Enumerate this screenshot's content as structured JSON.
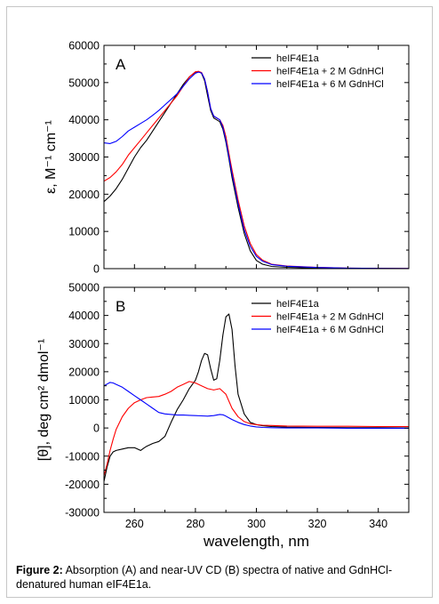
{
  "figure": {
    "caption_label": "Figure 2:",
    "caption_text": "Absorption (A) and near-UV CD (B) spectra of native and GdnHCl-denatured human eIF4E1a."
  },
  "chart_data": [
    {
      "type": "line",
      "panel_label": "A",
      "xlabel": "",
      "ylabel": "ε, M⁻¹ cm⁻¹",
      "xlim": [
        250,
        350
      ],
      "ylim": [
        0,
        60000
      ],
      "yticks": [
        0,
        10000,
        20000,
        30000,
        40000,
        50000,
        60000
      ],
      "xticks": [
        260,
        280,
        300,
        320,
        340
      ],
      "show_x_tick_labels": false,
      "grid": false,
      "legend_position": "top-right",
      "series": [
        {
          "name": "heIF4E1a",
          "color": "#000000",
          "x": [
            250,
            252,
            254,
            256,
            258,
            260,
            262,
            264,
            266,
            268,
            270,
            272,
            274,
            276,
            278,
            280,
            281,
            282,
            283,
            284,
            285,
            286,
            287,
            288,
            289,
            290,
            291,
            292,
            294,
            296,
            298,
            300,
            302,
            305,
            310,
            320,
            330,
            340,
            350
          ],
          "y": [
            18000,
            19500,
            21500,
            24000,
            27000,
            30000,
            32500,
            34500,
            37000,
            39500,
            42000,
            44500,
            47000,
            49500,
            51500,
            52800,
            53000,
            52500,
            50500,
            46500,
            42500,
            40500,
            40000,
            39500,
            37500,
            34000,
            29500,
            24500,
            16500,
            9500,
            4800,
            2200,
            1200,
            600,
            350,
            150,
            80,
            40,
            0
          ]
        },
        {
          "name": "heIF4E1a + 2 M GdnHCl",
          "color": "#ff0000",
          "x": [
            250,
            252,
            254,
            256,
            258,
            260,
            262,
            264,
            266,
            268,
            270,
            272,
            274,
            276,
            278,
            280,
            281,
            282,
            283,
            284,
            285,
            286,
            287,
            288,
            289,
            290,
            291,
            292,
            294,
            296,
            298,
            300,
            302,
            305,
            310,
            320,
            330,
            340,
            350
          ],
          "y": [
            23500,
            24500,
            26000,
            28000,
            30500,
            32500,
            34500,
            36500,
            38500,
            40500,
            42500,
            44500,
            46500,
            49000,
            51500,
            52900,
            53000,
            52700,
            51000,
            47500,
            43000,
            41000,
            40500,
            40000,
            38500,
            35500,
            31000,
            26500,
            18500,
            11500,
            6800,
            3800,
            2300,
            1200,
            700,
            350,
            150,
            80,
            50
          ]
        },
        {
          "name": "heIF4E1a + 6 M GdnHCl",
          "color": "#0000ff",
          "x": [
            250,
            252,
            254,
            256,
            258,
            260,
            262,
            264,
            266,
            268,
            270,
            272,
            274,
            276,
            278,
            280,
            281,
            282,
            283,
            284,
            285,
            286,
            287,
            288,
            289,
            290,
            291,
            292,
            294,
            296,
            298,
            300,
            302,
            305,
            310,
            320,
            330,
            340,
            350
          ],
          "y": [
            33800,
            33600,
            34200,
            35500,
            37000,
            38000,
            39000,
            40000,
            41200,
            42500,
            44000,
            45500,
            47000,
            49000,
            51000,
            52500,
            52800,
            52600,
            51000,
            47500,
            43000,
            41000,
            40500,
            40000,
            38000,
            34500,
            30000,
            25500,
            17500,
            10500,
            6000,
            3300,
            2000,
            1100,
            650,
            300,
            150,
            70,
            40
          ]
        }
      ]
    },
    {
      "type": "line",
      "panel_label": "B",
      "xlabel": "wavelength, nm",
      "ylabel": "[θ], deg cm² dmol⁻¹",
      "xlim": [
        250,
        350
      ],
      "ylim": [
        -30000,
        50000
      ],
      "yticks": [
        -30000,
        -20000,
        -10000,
        0,
        10000,
        20000,
        30000,
        40000,
        50000
      ],
      "xticks": [
        260,
        280,
        300,
        320,
        340
      ],
      "show_x_tick_labels": true,
      "grid": false,
      "legend_position": "top-right",
      "series": [
        {
          "name": "heIF4E1a",
          "color": "#000000",
          "x": [
            250,
            251,
            252,
            253,
            254,
            256,
            258,
            260,
            261,
            262,
            263,
            264,
            266,
            268,
            270,
            272,
            274,
            276,
            278,
            280,
            281,
            282,
            283,
            284,
            285,
            286,
            287,
            288,
            289,
            290,
            291,
            292,
            293,
            294,
            296,
            298,
            300,
            302,
            305,
            310,
            320,
            330,
            340,
            350
          ],
          "y": [
            -19000,
            -14000,
            -10000,
            -8500,
            -8000,
            -7500,
            -7000,
            -7000,
            -7500,
            -8000,
            -7200,
            -6500,
            -5500,
            -4800,
            -3000,
            2000,
            6500,
            10000,
            14000,
            17000,
            20000,
            24000,
            26500,
            26000,
            21000,
            17000,
            17500,
            24000,
            33000,
            39500,
            40500,
            35000,
            22000,
            12000,
            5000,
            2000,
            1200,
            800,
            500,
            300,
            200,
            100,
            100,
            0
          ]
        },
        {
          "name": "heIF4E1a + 2 M GdnHCl",
          "color": "#ff0000",
          "x": [
            250,
            251,
            252,
            253,
            254,
            256,
            258,
            260,
            262,
            264,
            266,
            268,
            270,
            272,
            274,
            276,
            278,
            280,
            282,
            284,
            286,
            288,
            290,
            292,
            294,
            296,
            298,
            300,
            302,
            305,
            310,
            320,
            330,
            340,
            350
          ],
          "y": [
            -17000,
            -13000,
            -8000,
            -4000,
            -500,
            4000,
            7000,
            9000,
            10000,
            10800,
            11000,
            11200,
            12000,
            13000,
            14500,
            15500,
            16500,
            16000,
            15000,
            14000,
            13500,
            14000,
            12000,
            7000,
            4000,
            2300,
            1500,
            1200,
            1000,
            900,
            700,
            600,
            600,
            500,
            500
          ]
        },
        {
          "name": "heIF4E1a + 6 M GdnHCl",
          "color": "#0000ff",
          "x": [
            250,
            252,
            253,
            254,
            256,
            258,
            260,
            262,
            264,
            266,
            268,
            270,
            272,
            274,
            276,
            278,
            280,
            282,
            284,
            286,
            288,
            289,
            290,
            292,
            294,
            296,
            298,
            300,
            302,
            305,
            310,
            320,
            330,
            340,
            350
          ],
          "y": [
            15000,
            16200,
            16000,
            15500,
            14500,
            13000,
            11500,
            10000,
            8500,
            7000,
            5500,
            5000,
            4800,
            4600,
            4600,
            4500,
            4400,
            4300,
            4200,
            4400,
            4800,
            4700,
            4200,
            3000,
            2000,
            1200,
            700,
            400,
            200,
            100,
            0,
            0,
            -100,
            -100,
            -100
          ]
        }
      ]
    }
  ]
}
